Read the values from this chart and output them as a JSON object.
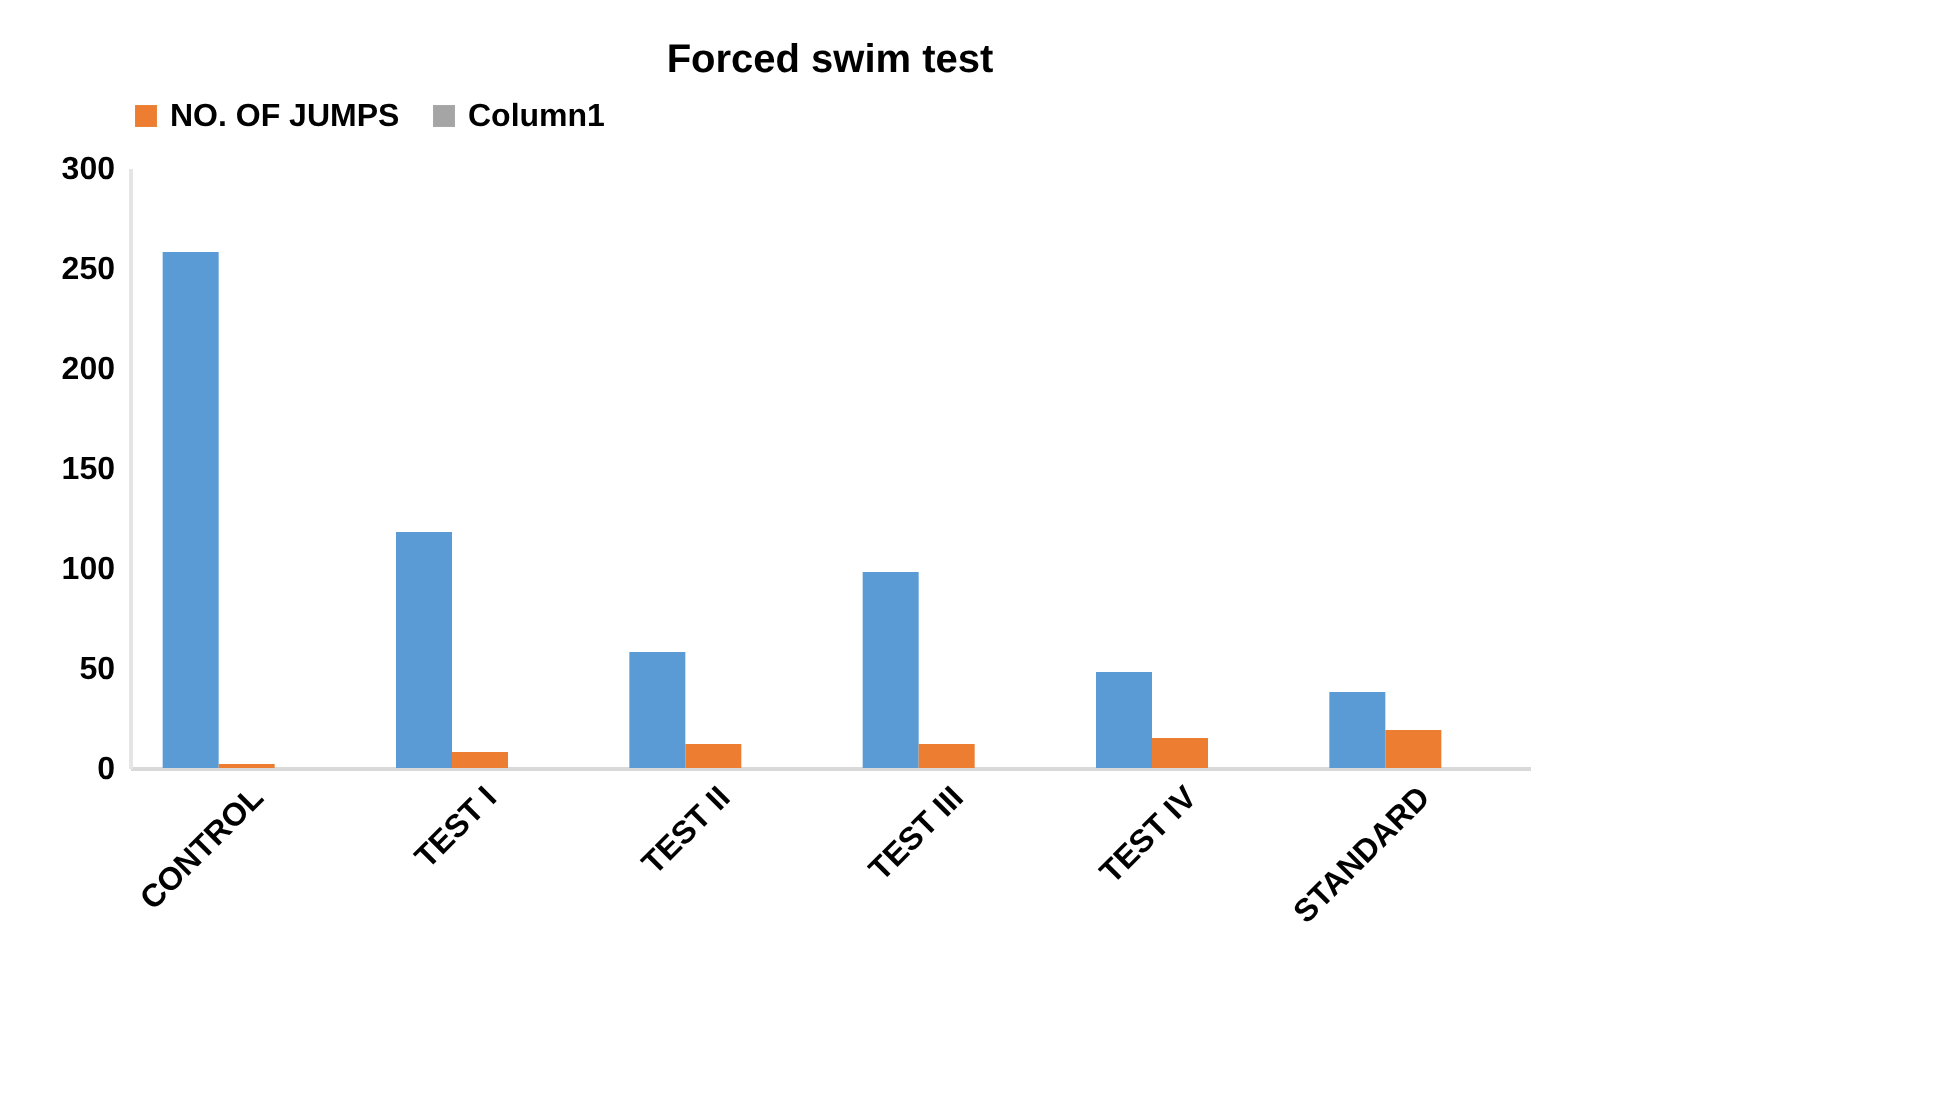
{
  "chart_data": {
    "type": "bar",
    "title": "Forced swim test",
    "categories": [
      "CONTROL",
      "TEST I",
      "TEST II",
      "TEST III",
      "TEST IV",
      "STANDARD"
    ],
    "series": [
      {
        "color": "#5b9bd5",
        "values": [
          258,
          118,
          58,
          98,
          48,
          38
        ]
      },
      {
        "name": "NO. OF JUMPS",
        "color": "#ed7d31",
        "values": [
          2,
          8,
          12,
          12,
          15,
          19
        ]
      },
      {
        "name": "Column1",
        "color": "#a5a5a5",
        "values": [
          null,
          null,
          null,
          null,
          null,
          null
        ]
      }
    ],
    "ylim": [
      0,
      300
    ],
    "yticks": [
      0,
      50,
      100,
      150,
      200,
      250,
      300
    ],
    "grid": false,
    "legend": "top"
  }
}
